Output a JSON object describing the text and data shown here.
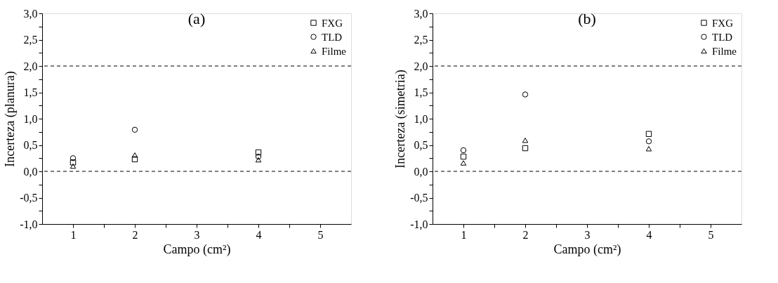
{
  "chart_data": [
    {
      "type": "scatter",
      "title": "(a)",
      "xlabel": "Campo (cm²)",
      "ylabel": "Incerteza (planura)",
      "x": [
        1,
        2,
        4
      ],
      "series": [
        {
          "name": "FXG",
          "color": "#000000",
          "marker": "square",
          "values": [
            0.17,
            0.23,
            0.36
          ]
        },
        {
          "name": "TLD",
          "color": "#000000",
          "marker": "circle",
          "values": [
            0.25,
            0.79,
            0.28
          ]
        },
        {
          "name": "Filme",
          "color": "#000000",
          "marker": "triangle",
          "values": [
            0.1,
            0.31,
            0.22
          ]
        }
      ],
      "xlim": [
        0.5,
        5.5
      ],
      "xticks": [
        1,
        {
          "value": 1.5,
          "label": null
        },
        2,
        {
          "value": 2.5,
          "label": null
        },
        3,
        {
          "value": 3.5,
          "label": null
        },
        4,
        {
          "value": 4.5,
          "label": null
        },
        5
      ],
      "ylim": [
        -1.0,
        3.0
      ],
      "yticks": [
        {
          "value": -1.0,
          "label": "-1,0"
        },
        {
          "value": -0.75,
          "label": null
        },
        {
          "value": -0.5,
          "label": "-0,5"
        },
        {
          "value": -0.25,
          "label": null
        },
        {
          "value": 0.0,
          "label": "0,0"
        },
        {
          "value": 0.25,
          "label": null
        },
        {
          "value": 0.5,
          "label": "0,5"
        },
        {
          "value": 0.75,
          "label": null
        },
        {
          "value": 1.0,
          "label": "1,0"
        },
        {
          "value": 1.25,
          "label": null
        },
        {
          "value": 1.5,
          "label": "1,5"
        },
        {
          "value": 1.75,
          "label": null
        },
        {
          "value": 2.0,
          "label": "2,0"
        },
        {
          "value": 2.25,
          "label": null
        },
        {
          "value": 2.5,
          "label": "2,5"
        },
        {
          "value": 2.75,
          "label": null
        },
        {
          "value": 3.0,
          "label": "3,0"
        }
      ],
      "ref_lines": [
        {
          "axis": "y",
          "value": 2.0,
          "color": "#000000",
          "line_style": "dashed"
        },
        {
          "axis": "y",
          "value": 0.0,
          "color": "#000000",
          "line_style": "dashed"
        }
      ],
      "grid": false,
      "legend": "top right"
    },
    {
      "type": "scatter",
      "title": "(b)",
      "xlabel": "Campo (cm²)",
      "ylabel": "Incerteza (simetria)",
      "x": [
        1,
        2,
        4
      ],
      "series": [
        {
          "name": "FXG",
          "color": "#000000",
          "marker": "square",
          "values": [
            0.28,
            0.44,
            0.71
          ]
        },
        {
          "name": "TLD",
          "color": "#000000",
          "marker": "circle",
          "values": [
            0.4,
            1.46,
            0.57
          ]
        },
        {
          "name": "Filme",
          "color": "#000000",
          "marker": "triangle",
          "values": [
            0.16,
            0.59,
            0.43
          ]
        }
      ],
      "xlim": [
        0.5,
        5.5
      ],
      "xticks": [
        1,
        {
          "value": 1.5,
          "label": null
        },
        2,
        {
          "value": 2.5,
          "label": null
        },
        3,
        {
          "value": 3.5,
          "label": null
        },
        4,
        {
          "value": 4.5,
          "label": null
        },
        5
      ],
      "ylim": [
        -1.0,
        3.0
      ],
      "yticks": [
        {
          "value": -1.0,
          "label": "-1,0"
        },
        {
          "value": -0.75,
          "label": null
        },
        {
          "value": -0.5,
          "label": "-0,5"
        },
        {
          "value": -0.25,
          "label": null
        },
        {
          "value": 0.0,
          "label": "0,0"
        },
        {
          "value": 0.25,
          "label": null
        },
        {
          "value": 0.5,
          "label": "0,5"
        },
        {
          "value": 0.75,
          "label": null
        },
        {
          "value": 1.0,
          "label": "1,0"
        },
        {
          "value": 1.25,
          "label": null
        },
        {
          "value": 1.5,
          "label": "1,5"
        },
        {
          "value": 1.75,
          "label": null
        },
        {
          "value": 2.0,
          "label": "2,0"
        },
        {
          "value": 2.25,
          "label": null
        },
        {
          "value": 2.5,
          "label": "2,5"
        },
        {
          "value": 2.75,
          "label": null
        },
        {
          "value": 3.0,
          "label": "3,0"
        }
      ],
      "ref_lines": [
        {
          "axis": "y",
          "value": 2.0,
          "color": "#000000",
          "line_style": "dashed"
        },
        {
          "axis": "y",
          "value": 0.0,
          "color": "#000000",
          "line_style": "dashed"
        }
      ],
      "grid": false,
      "legend": "top right"
    }
  ]
}
